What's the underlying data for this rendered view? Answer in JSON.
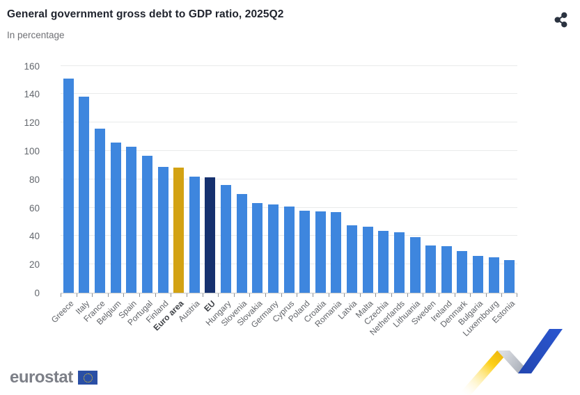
{
  "header": {
    "share_icon": "share-nodes-icon"
  },
  "chart_data": {
    "type": "bar",
    "title": "General government gross debt to GDP ratio, 2025Q2",
    "subtitle": "In percentage",
    "xlabel": "",
    "ylabel": "In percentage",
    "ylim": [
      0,
      160
    ],
    "yticks": [
      0,
      20,
      40,
      60,
      80,
      100,
      120,
      140,
      160
    ],
    "grid": true,
    "legend": "none",
    "categories": [
      "Greece",
      "Italy",
      "France",
      "Belgium",
      "Spain",
      "Portugal",
      "Finland",
      "Euro area",
      "Austria",
      "EU",
      "Hungary",
      "Slovenia",
      "Slovakia",
      "Germany",
      "Cyprus",
      "Poland",
      "Croatia",
      "Romania",
      "Latvia",
      "Malta",
      "Czechia",
      "Netherlands",
      "Lithuania",
      "Sweden",
      "Ireland",
      "Denmark",
      "Bulgaria",
      "Luxembourg",
      "Estonia"
    ],
    "values": [
      151,
      138,
      115.5,
      106,
      103,
      96.5,
      88.5,
      88,
      82,
      81.5,
      76,
      69.5,
      63,
      62.5,
      61,
      58,
      57.5,
      57,
      47.5,
      46.5,
      43.5,
      42.5,
      39,
      33.5,
      33,
      29.5,
      26,
      25,
      23
    ],
    "emphasis": [
      "Euro area",
      "EU"
    ],
    "colors": {
      "bar_default": "#3e86de",
      "bar_euro_area": "#d3a213",
      "bar_eu": "#16316f"
    }
  },
  "footer": {
    "logo_text": "eurostat",
    "ribbon_colors": [
      "#fdc81e",
      "#b9bec7",
      "#2a52c4"
    ]
  }
}
